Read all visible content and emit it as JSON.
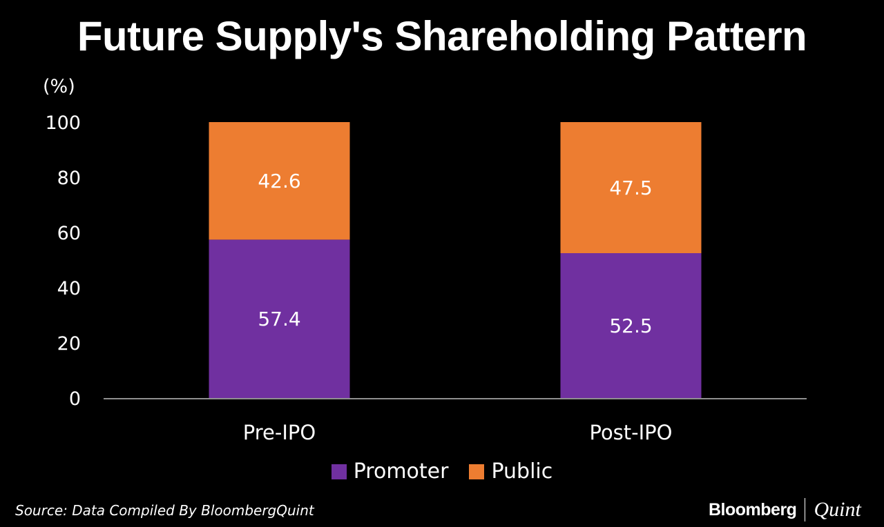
{
  "chart_data": {
    "type": "bar",
    "stacked": true,
    "title": "Future Supply's Shareholding Pattern",
    "ylabel": "(%)",
    "xlabel": "",
    "ylim": [
      0,
      100
    ],
    "yticks": [
      0,
      20,
      40,
      60,
      80,
      100
    ],
    "categories": [
      "Pre-IPO",
      "Post-IPO"
    ],
    "series": [
      {
        "name": "Promoter",
        "values": [
          57.4,
          52.5
        ],
        "color": "#7030A0"
      },
      {
        "name": "Public",
        "values": [
          42.6,
          47.5
        ],
        "color": "#ED7D31"
      }
    ],
    "legend_position": "bottom"
  },
  "footer": {
    "source": "Source: Data Compiled By BloombergQuint",
    "brand_left": "Bloomberg",
    "brand_right": "Quint"
  }
}
